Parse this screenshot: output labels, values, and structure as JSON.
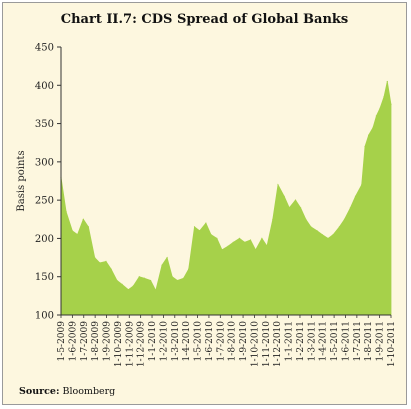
{
  "chart_data": {
    "type": "area",
    "title": "Chart II.7: CDS Spread of Global Banks",
    "xlabel": "",
    "ylabel": "Basis points",
    "ylim": [
      100,
      450
    ],
    "yticks": [
      100,
      150,
      200,
      250,
      300,
      350,
      400,
      450
    ],
    "grid": false,
    "legend": "none",
    "fill_color": "#a6d14a",
    "x_tick_labels": [
      "1-5-2009",
      "1-6-2009",
      "1-7-2009",
      "1-8-2009",
      "1-9-2009",
      "1-10-2009",
      "1-11-2009",
      "1-12-2009",
      "1-1-2010",
      "1-2-2010",
      "1-3-2010",
      "1-4-2010",
      "1-5-2010",
      "1-6-2010",
      "1-7-2010",
      "1-8-2010",
      "1-9-2010",
      "1-10-2010",
      "1-11-2010",
      "1-12-2010",
      "1-1-2011",
      "1-2-2011",
      "1-3-2011",
      "1-4-2011",
      "1-5-2011",
      "1-6-2011",
      "1-7-2011",
      "1-8-2011",
      "1-9-2011",
      "1-10-2011"
    ],
    "x": [
      "1-5-2009",
      "15-5-2009",
      "1-6-2009",
      "15-6-2009",
      "1-7-2009",
      "15-7-2009",
      "1-8-2009",
      "15-8-2009",
      "1-9-2009",
      "15-9-2009",
      "1-10-2009",
      "15-10-2009",
      "1-11-2009",
      "15-11-2009",
      "1-12-2009",
      "15-12-2009",
      "1-1-2010",
      "15-1-2010",
      "1-2-2010",
      "15-2-2010",
      "1-3-2010",
      "15-3-2010",
      "1-4-2010",
      "15-4-2010",
      "1-5-2010",
      "15-5-2010",
      "1-6-2010",
      "15-6-2010",
      "1-7-2010",
      "15-7-2010",
      "1-8-2010",
      "15-8-2010",
      "1-9-2010",
      "15-9-2010",
      "1-10-2010",
      "15-10-2010",
      "1-11-2010",
      "15-11-2010",
      "1-12-2010",
      "15-12-2010",
      "1-1-2011",
      "15-1-2011",
      "1-2-2011",
      "15-2-2011",
      "1-3-2011",
      "15-3-2011",
      "1-4-2011",
      "15-4-2011",
      "1-5-2011",
      "15-5-2011",
      "1-6-2011",
      "15-6-2011",
      "1-7-2011",
      "15-7-2011",
      "1-8-2011",
      "10-8-2011",
      "20-8-2011",
      "1-9-2011",
      "10-9-2011",
      "20-9-2011",
      "1-10-2011",
      "10-10-2011",
      "20-10-2011"
    ],
    "series": [
      {
        "values": [
          280,
          235,
          210,
          205,
          225,
          215,
          175,
          168,
          170,
          160,
          145,
          140,
          133,
          138,
          150,
          148,
          145,
          132,
          165,
          175,
          150,
          145,
          148,
          160,
          215,
          210,
          220,
          205,
          200,
          185,
          190,
          195,
          200,
          195,
          198,
          185,
          200,
          190,
          225,
          270,
          255,
          240,
          250,
          240,
          225,
          215,
          210,
          205,
          200,
          205,
          215,
          225,
          240,
          255,
          270,
          320,
          335,
          345,
          360,
          370,
          385,
          405,
          375
        ]
      }
    ]
  },
  "source": {
    "label": "Source:",
    "text": " Bloomberg"
  }
}
